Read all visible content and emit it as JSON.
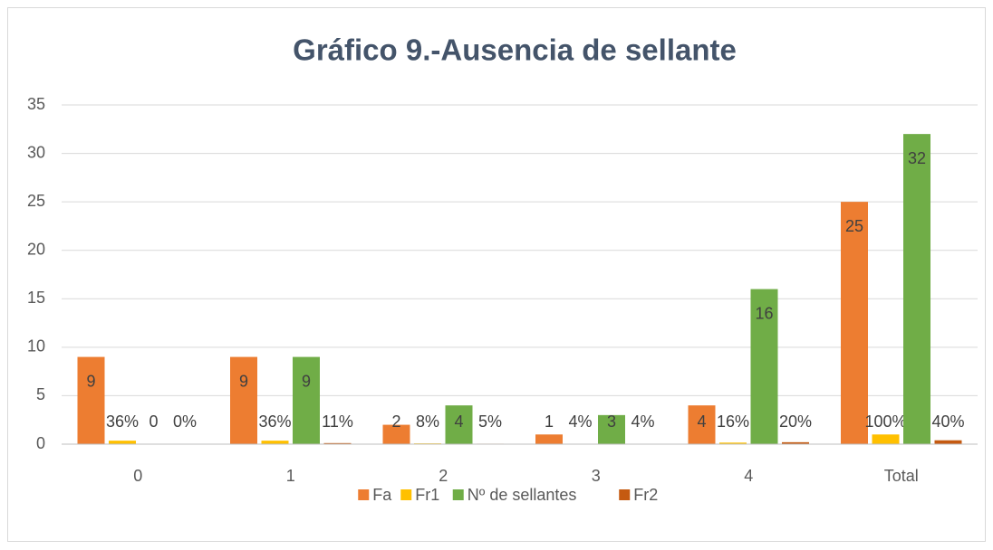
{
  "chart_data": {
    "type": "bar",
    "title": "Gráfico  9.-Ausencia de sellante",
    "categories": [
      "0",
      "1",
      "2",
      "3",
      "4",
      "Total"
    ],
    "series": [
      {
        "name": "Fa",
        "color": "#ed7d31",
        "values": [
          9,
          9,
          2,
          1,
          4,
          25
        ]
      },
      {
        "name": "Fr1",
        "color": "#ffc000",
        "values": [
          0.36,
          0.36,
          0.08,
          0.04,
          0.16,
          1
        ],
        "value_labels": [
          "36%",
          "36%",
          "8%",
          "4%",
          "16%",
          "100%"
        ]
      },
      {
        "name": "Nº de sellantes",
        "color": "#70ad47",
        "values": [
          0,
          9,
          4,
          3,
          16,
          32
        ]
      },
      {
        "name": "Fr2",
        "color": "#c55a11",
        "values": [
          0,
          0.11,
          0.05,
          0.04,
          0.2,
          0.4
        ],
        "value_labels": [
          "0%",
          "11%",
          "5%",
          "4%",
          "20%",
          "40%"
        ]
      }
    ],
    "ylim": [
      0,
      35
    ],
    "yticks": [
      0,
      5,
      10,
      15,
      20,
      25,
      30,
      35
    ],
    "grid": true,
    "legend": "bottom"
  }
}
